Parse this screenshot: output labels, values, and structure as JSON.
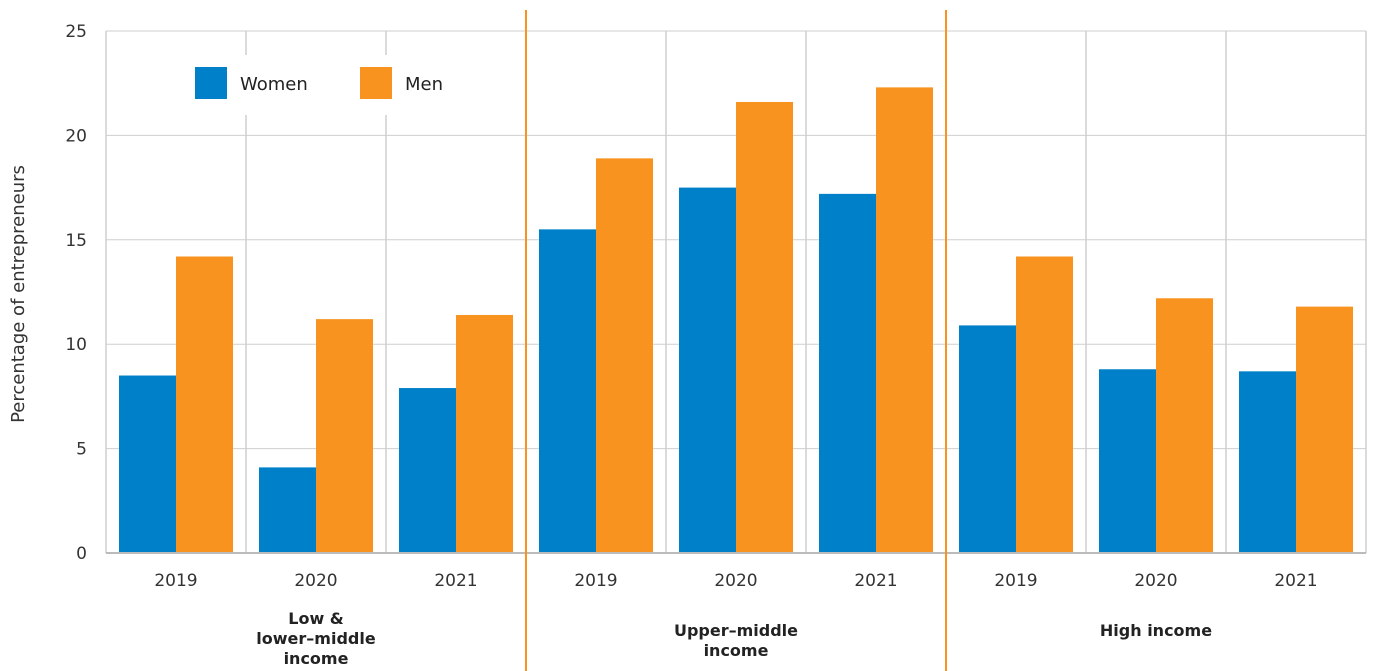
{
  "chart_data": {
    "type": "bar",
    "ylabel": "Percentage of entrepreneurs",
    "ylim": [
      0,
      25
    ],
    "yticks": [
      "0",
      "5",
      "10",
      "15",
      "20",
      "25"
    ],
    "grid": true,
    "legend_position": "top-left",
    "categories": [
      "2019",
      "2020",
      "2021",
      "2019",
      "2020",
      "2021",
      "2019",
      "2020",
      "2021"
    ],
    "groups": [
      {
        "label_lines": [
          "Low &",
          "lower–middle",
          "income"
        ],
        "span": [
          0,
          2
        ]
      },
      {
        "label_lines": [
          "Upper–middle",
          "income"
        ],
        "span": [
          3,
          5
        ]
      },
      {
        "label_lines": [
          "High income"
        ],
        "span": [
          6,
          8
        ]
      }
    ],
    "series": [
      {
        "name": "Women",
        "color": "#0080c8",
        "values": [
          8.5,
          4.1,
          7.9,
          15.5,
          17.5,
          17.2,
          10.9,
          8.8,
          8.7
        ]
      },
      {
        "name": "Men",
        "color": "#f7931e",
        "values": [
          14.2,
          11.2,
          11.4,
          18.9,
          21.6,
          22.3,
          14.2,
          12.2,
          11.8
        ]
      }
    ],
    "separator_color": "#f7931e",
    "grid_color": "#cfcfcf"
  }
}
